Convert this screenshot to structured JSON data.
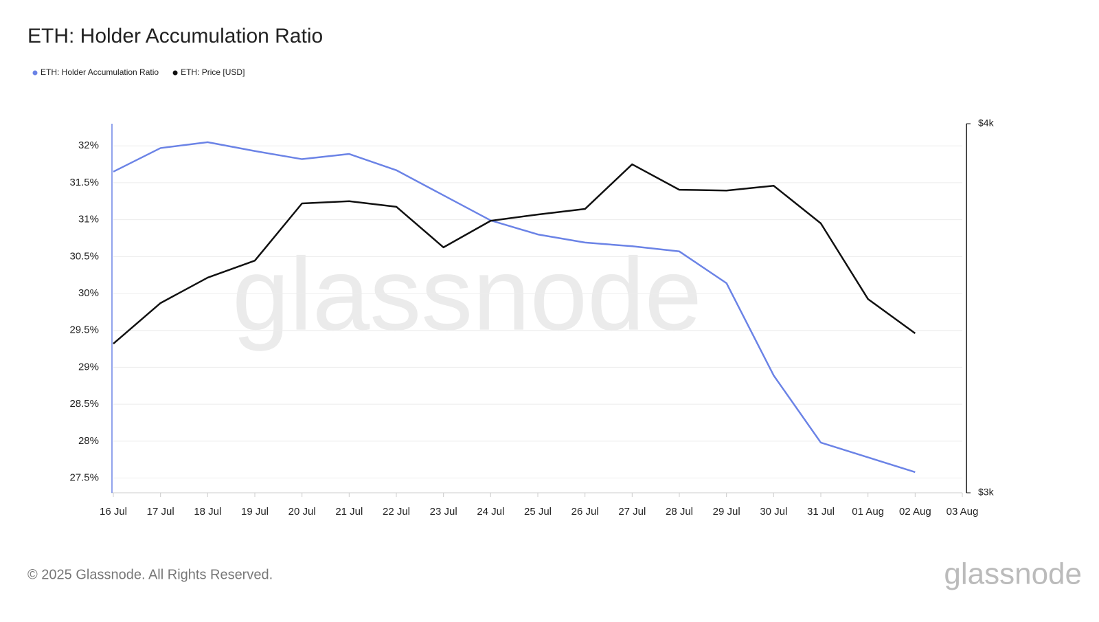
{
  "chart_data": {
    "type": "line",
    "title": "ETH: Holder Accumulation Ratio",
    "watermark": "glassnode",
    "footer": "© 2025 Glassnode. All Rights Reserved.",
    "logo": "glassnode",
    "categories": [
      "16 Jul",
      "17 Jul",
      "18 Jul",
      "19 Jul",
      "20 Jul",
      "21 Jul",
      "22 Jul",
      "23 Jul",
      "24 Jul",
      "25 Jul",
      "26 Jul",
      "27 Jul",
      "28 Jul",
      "29 Jul",
      "30 Jul",
      "31 Jul",
      "01 Aug",
      "02 Aug",
      "03 Aug"
    ],
    "series": [
      {
        "name": "ETH: Holder Accumulation Ratio",
        "color": "#6b83e6",
        "axis": "y",
        "values": [
          31.65,
          31.97,
          32.05,
          31.93,
          31.82,
          31.89,
          31.67,
          31.33,
          30.99,
          30.8,
          30.69,
          30.64,
          30.57,
          30.14,
          28.89,
          27.98,
          27.78,
          27.58,
          null
        ]
      },
      {
        "name": "ETH: Price [USD]",
        "color": "#111111",
        "axis": "y2",
        "values": [
          3404,
          3514,
          3583,
          3629,
          3784,
          3790,
          3775,
          3665,
          3737,
          3754,
          3769,
          3890,
          3821,
          3819,
          3832,
          3730,
          3525,
          3432,
          null
        ]
      }
    ],
    "ylim": [
      27.3,
      32.3
    ],
    "yticks": [
      {
        "value": 27.5,
        "label": "27.5%"
      },
      {
        "value": 28,
        "label": "28%"
      },
      {
        "value": 28.5,
        "label": "28.5%"
      },
      {
        "value": 29,
        "label": "29%"
      },
      {
        "value": 29.5,
        "label": "29.5%"
      },
      {
        "value": 30,
        "label": "30%"
      },
      {
        "value": 30.5,
        "label": "30.5%"
      },
      {
        "value": 31,
        "label": "31%"
      },
      {
        "value": 31.5,
        "label": "31.5%"
      },
      {
        "value": 32,
        "label": "32%"
      }
    ],
    "y2lim": [
      3000,
      4000
    ],
    "y2ticks": [
      {
        "value": 3000,
        "label": "$3k"
      },
      {
        "value": 4000,
        "label": "$4k"
      }
    ],
    "grid": true,
    "legend": "top-left"
  }
}
